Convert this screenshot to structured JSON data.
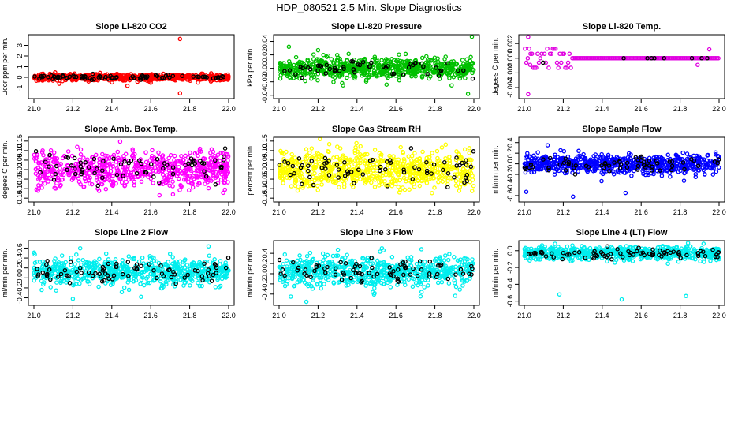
{
  "figure_title": "HDP_080521  2.5 Min. Slope Diagnostics",
  "chart_data": [
    {
      "id": "co2",
      "type": "scatter",
      "title": "Slope Li-820 CO2",
      "ylabel": "Licor ppm per min.",
      "color": "#ff0000",
      "xlim": [
        21.0,
        22.0
      ],
      "xticks": [
        "21.0",
        "21.2",
        "21.4",
        "21.6",
        "21.8",
        "22.0"
      ],
      "ylim": [
        -2.0,
        4.0
      ],
      "yticks": [
        {
          "v": -1,
          "label": "-1"
        },
        {
          "v": 0,
          "label": "0"
        },
        {
          "v": 1,
          "label": "1"
        },
        {
          "v": 2,
          "label": "2"
        },
        {
          "v": 3,
          "label": "3"
        }
      ],
      "n_points": 700,
      "center": 0.0,
      "spread": 0.14,
      "black_frac": 0.12,
      "outliers": [
        {
          "x": 21.75,
          "y": 3.6
        },
        {
          "x": 21.75,
          "y": -1.5
        },
        {
          "x": 21.48,
          "y": -0.8
        },
        {
          "x": 21.13,
          "y": -0.6
        },
        {
          "x": 21.6,
          "y": -0.5
        }
      ]
    },
    {
      "id": "pressure",
      "type": "scatter",
      "title": "Slope Li-820 Pressure",
      "ylabel": "kPa per min.",
      "color": "#00c000",
      "xlim": [
        21.0,
        22.0
      ],
      "xticks": [
        "21.0",
        "21.2",
        "21.4",
        "21.6",
        "21.8",
        "22.0"
      ],
      "ylim": [
        -0.045,
        0.05
      ],
      "yticks": [
        {
          "v": -0.04,
          "label": "-0.04"
        },
        {
          "v": -0.02,
          "label": "-0.02"
        },
        {
          "v": 0,
          "label": "0.00"
        },
        {
          "v": 0.02,
          "label": "0.02"
        },
        {
          "v": 0.04,
          "label": "0.04"
        }
      ],
      "n_points": 700,
      "center": 0.0,
      "spread": 0.008,
      "black_frac": 0.08,
      "outliers": [
        {
          "x": 21.99,
          "y": 0.047
        },
        {
          "x": 21.97,
          "y": -0.038
        },
        {
          "x": 21.05,
          "y": 0.032
        },
        {
          "x": 21.2,
          "y": 0.027
        }
      ]
    },
    {
      "id": "temp",
      "type": "scatter",
      "title": "Slope Li-820 Temp.",
      "ylabel": "degees C per min.",
      "color": "#e000e0",
      "xlim": [
        21.0,
        22.0
      ],
      "xticks": [
        "21.0",
        "21.2",
        "21.4",
        "21.6",
        "21.8",
        "22.0"
      ],
      "ylim": [
        -0.0055,
        0.0032
      ],
      "yticks": [
        {
          "v": -0.004,
          "label": "-0.004"
        },
        {
          "v": -0.002,
          "label": "-0.002"
        },
        {
          "v": 0,
          "label": "0.000"
        },
        {
          "v": 0.002,
          "label": "0.002"
        }
      ],
      "quantized": true,
      "qvals": [
        0.0,
        0.0006,
        0.0013,
        -0.0006,
        -0.0013
      ],
      "settle_x": 21.25,
      "n_points": 140,
      "black_frac": 0.1,
      "outliers": [
        {
          "x": 21.02,
          "y": 0.0029
        },
        {
          "x": 21.02,
          "y": -0.0049
        },
        {
          "x": 21.03,
          "y": -0.0009
        },
        {
          "x": 21.89,
          "y": -0.0009
        },
        {
          "x": 21.95,
          "y": 0.0012
        }
      ]
    },
    {
      "id": "boxtemp",
      "type": "scatter",
      "title": "Slope Amb. Box Temp.",
      "ylabel": "degees C per min.",
      "color": "#ff00ff",
      "xlim": [
        21.0,
        22.0
      ],
      "xticks": [
        "21.0",
        "21.2",
        "21.4",
        "21.6",
        "21.8",
        "22.0"
      ],
      "ylim": [
        -0.17,
        0.17
      ],
      "yticks": [
        {
          "v": -0.15,
          "label": "-0.15"
        },
        {
          "v": -0.1,
          "label": "-0.10"
        },
        {
          "v": -0.05,
          "label": "-0.05"
        },
        {
          "v": 0,
          "label": "0.00"
        },
        {
          "v": 0.05,
          "label": "0.05"
        },
        {
          "v": 0.1,
          "label": "0.10"
        },
        {
          "v": 0.15,
          "label": "0.15"
        }
      ],
      "n_points": 700,
      "center": 0.0,
      "spread": 0.045,
      "black_frac": 0.1,
      "outliers": []
    },
    {
      "id": "rh",
      "type": "scatter",
      "title": "Slope Gas Stream RH",
      "ylabel": "percent per min.",
      "color": "#ffff00",
      "xlim": [
        21.0,
        22.0
      ],
      "xticks": [
        "21.0",
        "21.2",
        "21.4",
        "21.6",
        "21.8",
        "22.0"
      ],
      "ylim": [
        -0.17,
        0.17
      ],
      "yticks": [
        {
          "v": -0.15,
          "label": "-0.15"
        },
        {
          "v": -0.1,
          "label": "-0.10"
        },
        {
          "v": -0.05,
          "label": "-0.05"
        },
        {
          "v": 0,
          "label": "0.00"
        },
        {
          "v": 0.05,
          "label": "0.05"
        },
        {
          "v": 0.1,
          "label": "0.10"
        },
        {
          "v": 0.15,
          "label": "0.15"
        }
      ],
      "n_points": 700,
      "center": 0.0,
      "spread": 0.05,
      "black_frac": 0.1,
      "outliers": []
    },
    {
      "id": "sampleflow",
      "type": "scatter",
      "title": "Slope Sample Flow",
      "ylabel": "ml/min per min.",
      "color": "#0000ff",
      "xlim": [
        21.0,
        22.0
      ],
      "xticks": [
        "21.0",
        "21.2",
        "21.4",
        "21.6",
        "21.8",
        "22.0"
      ],
      "ylim": [
        -0.72,
        0.5
      ],
      "yticks": [
        {
          "v": -0.6,
          "label": "-0.6"
        },
        {
          "v": -0.4,
          "label": "-0.4"
        },
        {
          "v": -0.2,
          "label": "-0.2"
        },
        {
          "v": 0,
          "label": "0.0"
        },
        {
          "v": 0.2,
          "label": "0.2"
        },
        {
          "v": 0.4,
          "label": "0.4"
        }
      ],
      "n_points": 650,
      "center": 0.0,
      "spread": 0.09,
      "black_frac": 0.1,
      "outliers": [
        {
          "x": 21.01,
          "y": -0.53
        },
        {
          "x": 21.25,
          "y": -0.62
        },
        {
          "x": 21.52,
          "y": -0.55
        },
        {
          "x": 21.12,
          "y": 0.35
        },
        {
          "x": 21.82,
          "y": -0.32
        }
      ]
    },
    {
      "id": "line2",
      "type": "scatter",
      "title": "Slope Line 2 Flow",
      "ylabel": "ml/min per min.",
      "color": "#00eeee",
      "xlim": [
        21.0,
        22.0
      ],
      "xticks": [
        "21.0",
        "21.2",
        "21.4",
        "21.6",
        "21.8",
        "22.0"
      ],
      "ylim": [
        -0.55,
        0.75
      ],
      "yticks": [
        {
          "v": -0.4,
          "label": "-0.4"
        },
        {
          "v": -0.2,
          "label": "-0.2"
        },
        {
          "v": 0,
          "label": "0.0"
        },
        {
          "v": 0.2,
          "label": "0.2"
        },
        {
          "v": 0.4,
          "label": "0.4"
        },
        {
          "v": 0.6,
          "label": "0.6"
        }
      ],
      "n_points": 650,
      "center": 0.12,
      "spread": 0.13,
      "black_frac": 0.12,
      "outliers": [
        {
          "x": 21.2,
          "y": -0.42
        },
        {
          "x": 21.55,
          "y": -0.38
        }
      ]
    },
    {
      "id": "line3",
      "type": "scatter",
      "title": "Slope Line 3 Flow",
      "ylabel": "ml/min per min.",
      "color": "#00eeee",
      "xlim": [
        21.0,
        22.0
      ],
      "xticks": [
        "21.0",
        "21.2",
        "21.4",
        "21.6",
        "21.8",
        "22.0"
      ],
      "ylim": [
        -0.62,
        0.65
      ],
      "yticks": [
        {
          "v": -0.4,
          "label": "-0.4"
        },
        {
          "v": -0.2,
          "label": "-0.2"
        },
        {
          "v": 0,
          "label": "0.0"
        },
        {
          "v": 0.2,
          "label": "0.2"
        },
        {
          "v": 0.4,
          "label": "0.4"
        }
      ],
      "n_points": 650,
      "center": 0.05,
      "spread": 0.15,
      "black_frac": 0.12,
      "outliers": [
        {
          "x": 21.06,
          "y": -0.45
        },
        {
          "x": 21.14,
          "y": -0.55
        }
      ]
    },
    {
      "id": "line4",
      "type": "scatter",
      "title": "Slope Line 4 (LT) Flow",
      "ylabel": "ml/min per min.",
      "color": "#00eeee",
      "xlim": [
        21.0,
        22.0
      ],
      "xticks": [
        "21.0",
        "21.2",
        "21.4",
        "21.6",
        "21.8",
        "22.0"
      ],
      "ylim": [
        -0.65,
        0.12
      ],
      "yticks": [
        {
          "v": -0.6,
          "label": "-0.6"
        },
        {
          "v": -0.4,
          "label": "-0.4"
        },
        {
          "v": -0.2,
          "label": "-0.2"
        },
        {
          "v": 0,
          "label": "0.0"
        }
      ],
      "n_points": 650,
      "center": -0.03,
      "spread": 0.04,
      "black_frac": 0.12,
      "outliers": [
        {
          "x": 21.18,
          "y": -0.52
        },
        {
          "x": 21.5,
          "y": -0.58
        },
        {
          "x": 21.83,
          "y": -0.54
        }
      ]
    }
  ]
}
